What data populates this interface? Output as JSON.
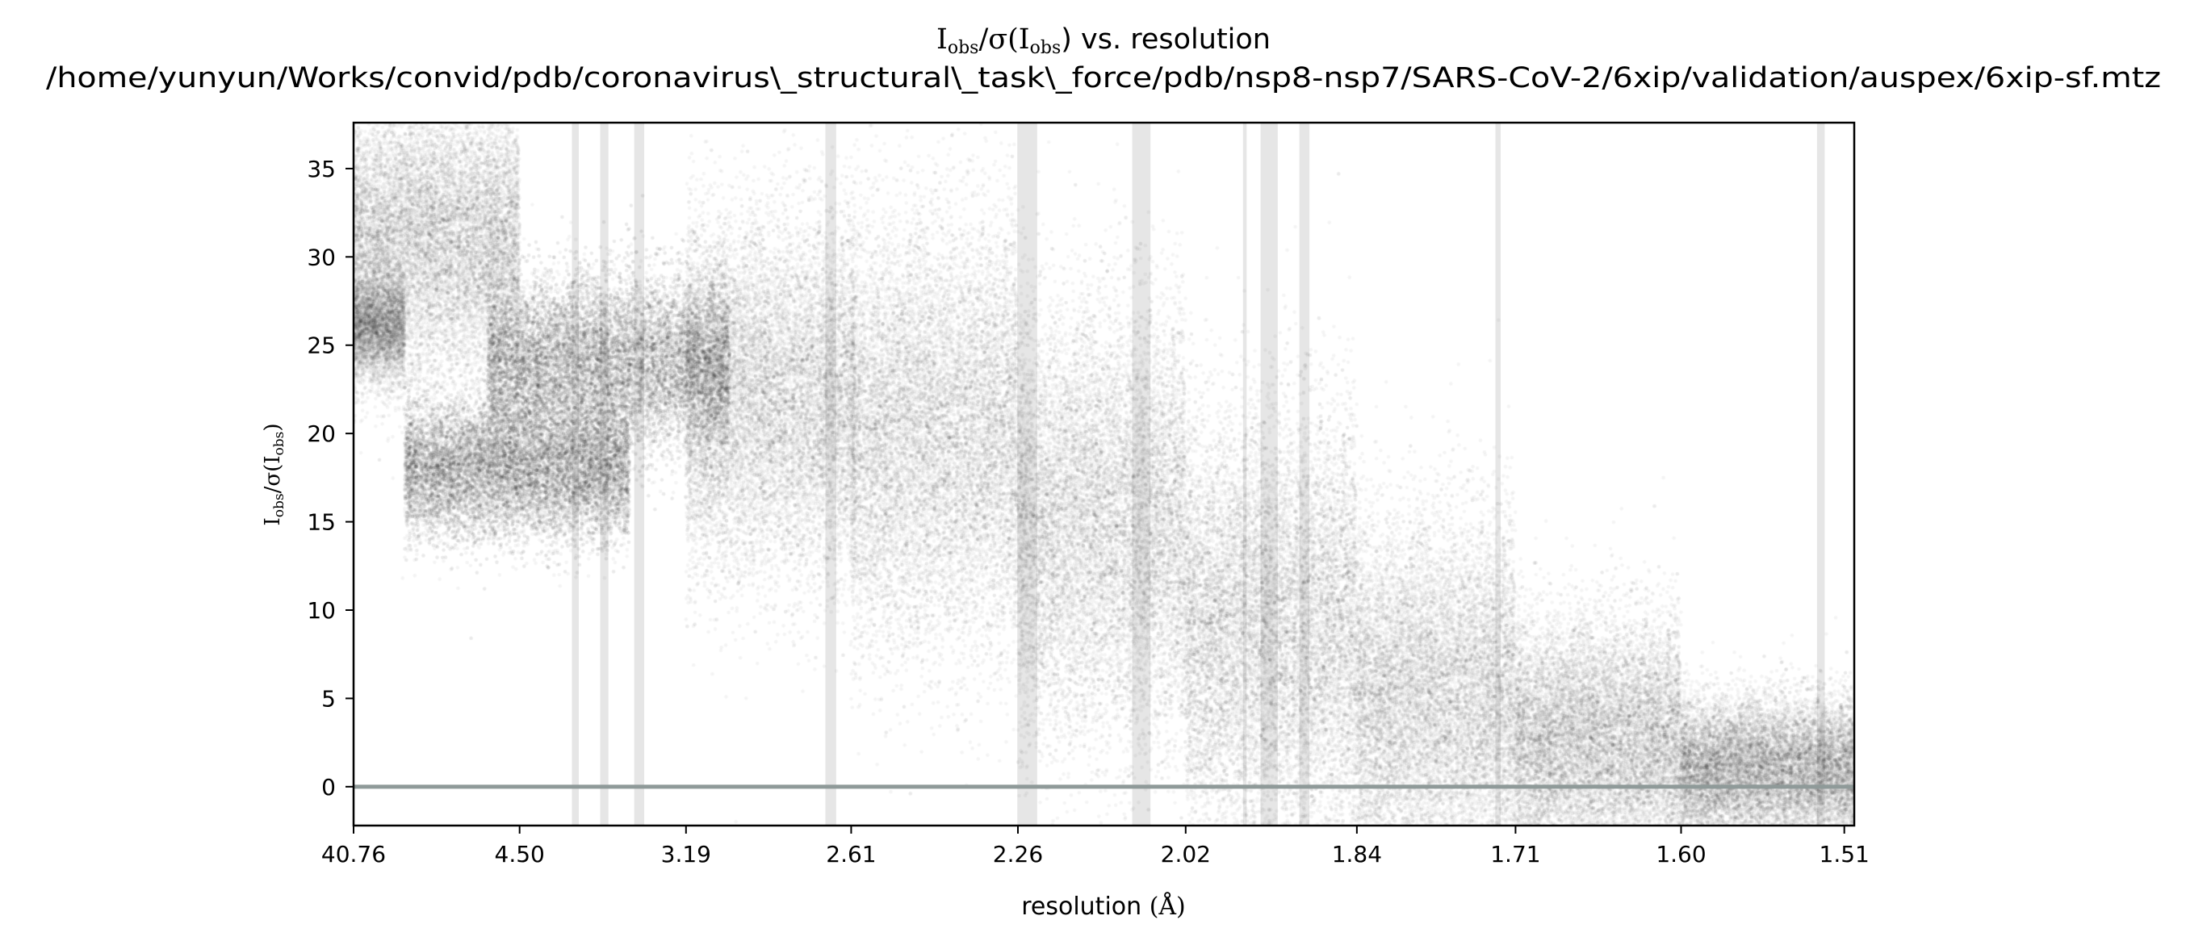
{
  "chart_data": {
    "type": "scatter",
    "title": {
      "main": "I",
      "sub1": "obs",
      "mid": "/σ(I",
      "sub2": "obs",
      "end": ") vs. resolution"
    },
    "subtitle": "/home/yunyun/Works/convid/pdb/coronavirus\\_structural\\_task\\_force/pdb/nsp8-nsp7/SARS-CoV-2/6xip/validation/auspex/6xip-sf.mtz",
    "xlabel": {
      "text": "resolution ",
      "unit": "(Å)"
    },
    "ylabel": {
      "main": "I",
      "sub1": "obs",
      "mid": "/σ(I",
      "sub2": "obs",
      "end": ")"
    },
    "x_scale": "1/d^2 (reciprocal resolution squared)",
    "x_ticks": [
      40.76,
      4.5,
      3.19,
      2.61,
      2.26,
      2.02,
      1.84,
      1.71,
      1.6,
      1.51
    ],
    "x_tick_labels": [
      "40.76",
      "4.50",
      "3.19",
      "2.61",
      "2.26",
      "2.02",
      "1.84",
      "1.71",
      "1.60",
      "1.51"
    ],
    "xlim": [
      40.76,
      1.505
    ],
    "y_ticks": [
      0,
      5,
      10,
      15,
      20,
      25,
      30,
      35
    ],
    "y_tick_labels": [
      "0",
      "5",
      "10",
      "15",
      "20",
      "25",
      "30",
      "35"
    ],
    "ylim": [
      -2.2,
      37.6
    ],
    "grid": false,
    "legend": "none",
    "reference_line": {
      "y": 0,
      "color": "#8f9a99"
    },
    "point_color": "#000000",
    "ice_ring_color": "#e6e6e6",
    "ice_ring_bands": [
      [
        3.93,
        3.87
      ],
      [
        3.7,
        3.64
      ],
      [
        3.47,
        3.41
      ],
      [
        2.68,
        2.65
      ],
      [
        2.261,
        2.228
      ],
      [
        2.088,
        2.064
      ],
      [
        1.954,
        1.95
      ],
      [
        1.935,
        1.917
      ],
      [
        1.895,
        1.885
      ],
      [
        1.725,
        1.721
      ],
      [
        1.524,
        1.52
      ]
    ],
    "density_clusters": [
      {
        "d_min": 8.0,
        "d_max": 40.76,
        "y_center": 26,
        "y_spread": 1.5
      },
      {
        "d_min": 4.5,
        "d_max": 40.76,
        "y_center": 31,
        "y_spread": 4
      },
      {
        "d_min": 3.5,
        "d_max": 8.0,
        "y_center": 18,
        "y_spread": 2
      },
      {
        "d_min": 3.0,
        "d_max": 5.0,
        "y_center": 24,
        "y_spread": 2.5
      },
      {
        "d_min": 2.6,
        "d_max": 3.19,
        "y_center": 22,
        "y_spread": 5
      },
      {
        "d_min": 2.26,
        "d_max": 2.61,
        "y_center": 20,
        "y_spread": 6
      },
      {
        "d_min": 2.02,
        "d_max": 2.26,
        "y_center": 15,
        "y_spread": 6
      },
      {
        "d_min": 1.84,
        "d_max": 2.02,
        "y_center": 9,
        "y_spread": 6
      },
      {
        "d_min": 1.71,
        "d_max": 1.84,
        "y_center": 5,
        "y_spread": 5
      },
      {
        "d_min": 1.6,
        "d_max": 1.71,
        "y_center": 2.5,
        "y_spread": 3.5
      },
      {
        "d_min": 1.505,
        "d_max": 1.6,
        "y_center": 1,
        "y_spread": 2
      }
    ]
  }
}
